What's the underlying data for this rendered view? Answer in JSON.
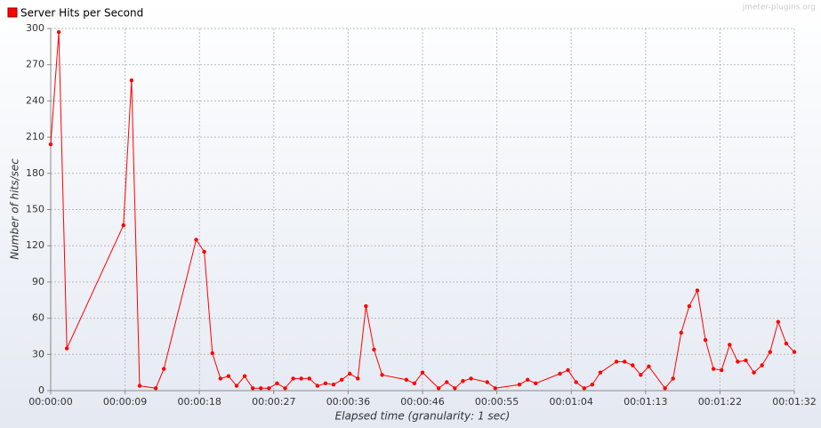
{
  "chart_data": {
    "type": "line",
    "legend_title": "Server Hits per Second",
    "watermark": "jmeter-plugins.org",
    "ylabel": "Number of hits/sec",
    "xlabel": "Elapsed time (granularity: 1 sec)",
    "grid": true,
    "series": [
      {
        "name": "Server Hits per Second",
        "color": "#ff0000",
        "x": [
          0,
          1,
          2,
          9,
          10,
          11,
          13,
          14,
          18,
          19,
          20,
          21,
          22,
          23,
          24,
          25,
          26,
          27,
          28,
          29,
          30,
          31,
          32,
          33,
          34,
          35,
          36,
          37,
          38,
          39,
          40,
          41,
          44,
          45,
          46,
          48,
          49,
          50,
          51,
          52,
          54,
          55,
          58,
          59,
          60,
          63,
          64,
          65,
          66,
          67,
          68,
          70,
          71,
          72,
          73,
          74,
          76,
          77,
          78,
          79,
          80,
          81,
          82,
          83,
          84,
          85,
          86,
          87,
          88,
          89,
          90,
          91,
          92
        ],
        "values": [
          204,
          297,
          35,
          137,
          257,
          4,
          2,
          18,
          125,
          115,
          31,
          10,
          12,
          4,
          12,
          2,
          2,
          2,
          6,
          2,
          10,
          10,
          10,
          4,
          6,
          5,
          9,
          14,
          10,
          70,
          34,
          13,
          9,
          6,
          15,
          2,
          7,
          2,
          8,
          10,
          7,
          2,
          5,
          9,
          6,
          14,
          17,
          7,
          2,
          5,
          15,
          24,
          24,
          21,
          13,
          20,
          2,
          10,
          48,
          70,
          83,
          42,
          18,
          17,
          38,
          24,
          25,
          15,
          21,
          32,
          57,
          39,
          32
        ]
      }
    ],
    "xlim": [
      0,
      92
    ],
    "xticks": [
      {
        "value": 0,
        "label": "00:00:00"
      },
      {
        "value": 9.2,
        "label": "00:00:09"
      },
      {
        "value": 18.4,
        "label": "00:00:18"
      },
      {
        "value": 27.6,
        "label": "00:00:27"
      },
      {
        "value": 36.8,
        "label": "00:00:36"
      },
      {
        "value": 46,
        "label": "00:00:46"
      },
      {
        "value": 55.2,
        "label": "00:00:55"
      },
      {
        "value": 64.4,
        "label": "00:01:04"
      },
      {
        "value": 73.6,
        "label": "00:01:13"
      },
      {
        "value": 82.8,
        "label": "00:01:22"
      },
      {
        "value": 92,
        "label": "00:01:32"
      }
    ],
    "ylim": [
      0,
      300
    ],
    "yticks": [
      0,
      30,
      60,
      90,
      120,
      150,
      180,
      210,
      240,
      270,
      300
    ]
  }
}
